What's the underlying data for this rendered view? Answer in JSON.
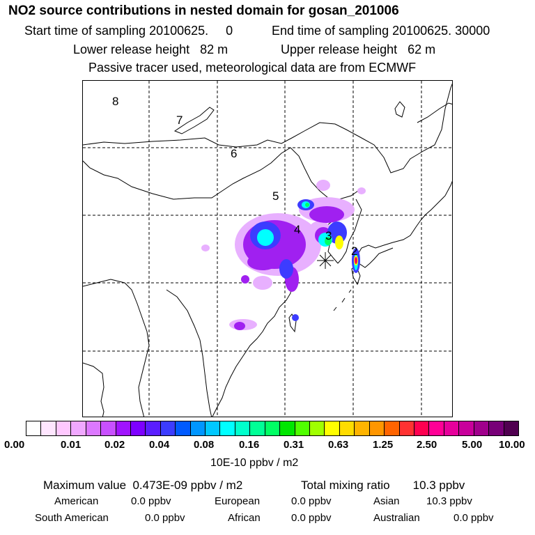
{
  "title": "NO2 source contributions in nested domain for gosan_201006",
  "sampling": {
    "start": "Start time of sampling 20100625.     0",
    "end": "End time of sampling 20100625. 30000"
  },
  "release": {
    "lower": "Lower release height   82 m",
    "upper": "Upper release height   62 m"
  },
  "note": "Passive tracer used, meteorological data are from ECMWF",
  "map_labels": [
    "8",
    "7",
    "6",
    "5",
    "4",
    "3",
    "2"
  ],
  "colorbar": {
    "colors": [
      "#ffffff",
      "#ffe6ff",
      "#ffc8ff",
      "#f0a8ff",
      "#dc78ff",
      "#c850ff",
      "#a014ff",
      "#7d00ff",
      "#5a1eff",
      "#3c3cff",
      "#005aff",
      "#0096ff",
      "#00c8ff",
      "#00ffff",
      "#00ffcc",
      "#00ff96",
      "#00ff64",
      "#00e600",
      "#50ff00",
      "#a0ff00",
      "#ffff00",
      "#ffdc00",
      "#ffb400",
      "#ff9600",
      "#ff6400",
      "#ff3232",
      "#ff0050",
      "#ff0096",
      "#e6009b",
      "#c8009b",
      "#a0008c",
      "#780078",
      "#500050"
    ],
    "ticks": [
      "0.00",
      "0.01",
      "0.02",
      "0.04",
      "0.08",
      "0.16",
      "0.31",
      "0.63",
      "1.25",
      "2.50",
      "5.00",
      "10.00"
    ],
    "unit": "10E-10 ppbv / m2"
  },
  "summary": {
    "max": "Maximum value  0.473E-09 ppbv / m2",
    "total": "Total mixing ratio       10.3 ppbv"
  },
  "regions": [
    {
      "name": "American",
      "value": "0.0 ppbv"
    },
    {
      "name": "European",
      "value": "0.0 ppbv"
    },
    {
      "name": "Asian",
      "value": "10.3 ppbv"
    },
    {
      "name": "South American",
      "value": "0.0 ppbv"
    },
    {
      "name": "African",
      "value": "0.0 ppbv"
    },
    {
      "name": "Australian",
      "value": "0.0 ppbv"
    }
  ]
}
